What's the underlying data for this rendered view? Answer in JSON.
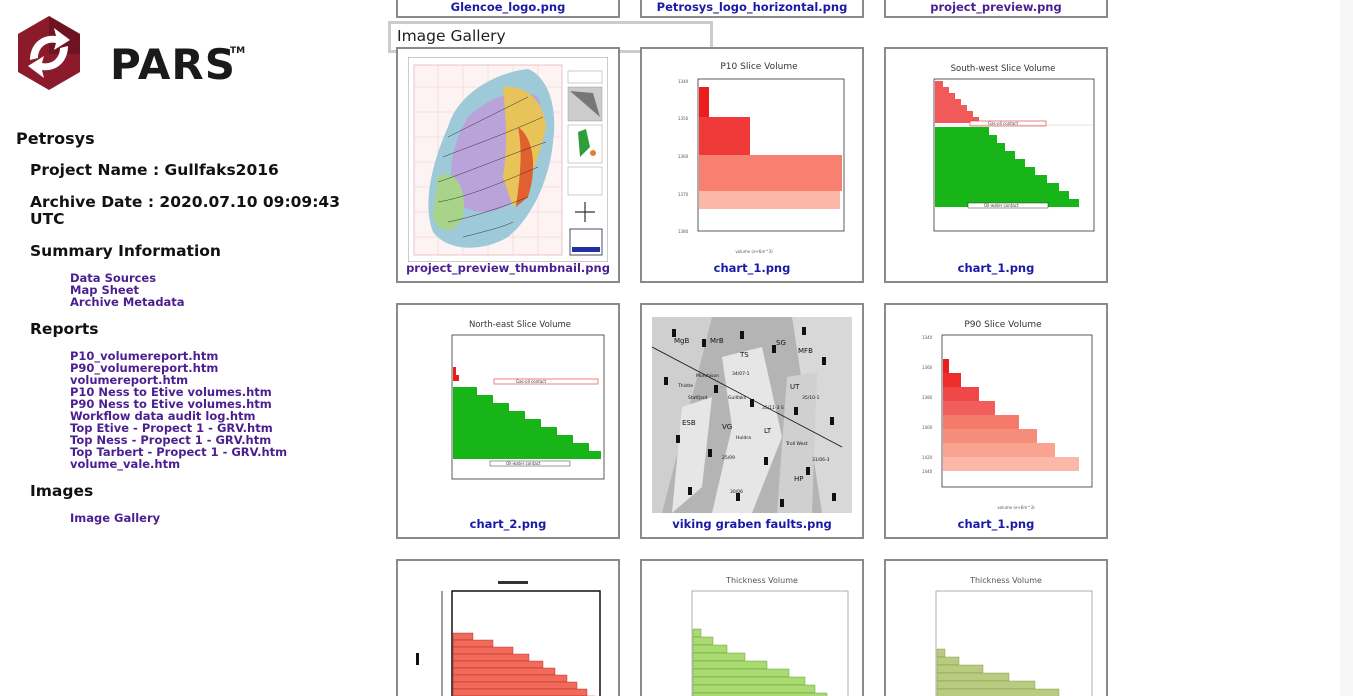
{
  "logo": {
    "text": "PARS",
    "tm": "TM",
    "colors": {
      "red": "#8b1a2b",
      "dark": "#5b0f1c"
    }
  },
  "sidebar": {
    "company": "Petrosys",
    "project_name": "Project Name : Gullfaks2016",
    "archive_date": "Archive Date : 2020.07.10 09:09:43 UTC",
    "summary_heading": "Summary Information",
    "summary_links": [
      "Data Sources",
      "Map Sheet",
      "Archive Metadata"
    ],
    "reports_heading": "Reports",
    "report_links": [
      "P10_volumereport.htm",
      "P90_volumereport.htm",
      "volumereport.htm",
      "P10 Ness to Etive volumes.htm",
      "P90 Ness to Etive volumes.htm",
      "Workflow data audit log.htm",
      "Top Etive - Propect 1 - GRV.htm",
      "Top Ness - Propect 1 - GRV.htm",
      "Top Tarbert - Propect 1 - GRV.htm",
      "volume_vale.htm"
    ],
    "images_heading": "Images",
    "image_links": [
      "Image Gallery"
    ]
  },
  "gallery": {
    "label": "Image Gallery",
    "top_row": [
      "Glencoe_logo.png",
      "Petrosys_logo_horizontal.png",
      "project_preview.png"
    ],
    "row1": [
      "project_preview_thumbnail.png",
      "chart_1.png",
      "chart_1.png"
    ],
    "row2": [
      "chart_2.png",
      "viking graben faults.png",
      "chart_1.png"
    ],
    "thumb_titles": {
      "p10": "P10 Slice Volume",
      "sw": "South-west Slice Volume",
      "ne": "North-east Slice Volume",
      "p90": "P90 Slice Volume",
      "thick1": "Thickness Volume",
      "thick2": "Thickness Volume"
    },
    "contact_labels": {
      "gas_oil": "Gas-oil contact",
      "oil_water": "Oil-water contact"
    },
    "fault_map_labels": [
      "MgB",
      "MrB",
      "TS",
      "SG",
      "MFB",
      "UT",
      "ESB",
      "VG",
      "LT",
      "HP",
      "Troll West",
      "Huldra",
      "Gullfaks",
      "Statfjord",
      "Murchison",
      "Thistle",
      "34/07-1",
      "35/11-3 S",
      "35/10-1",
      "31/06-3",
      "30/06",
      "25/09"
    ]
  },
  "colors": {
    "link": "#1a1aa6",
    "visited": "#4b1f8f",
    "tile_border": "#8a8a8a",
    "red": "#e83a3a",
    "green": "#11b811"
  }
}
